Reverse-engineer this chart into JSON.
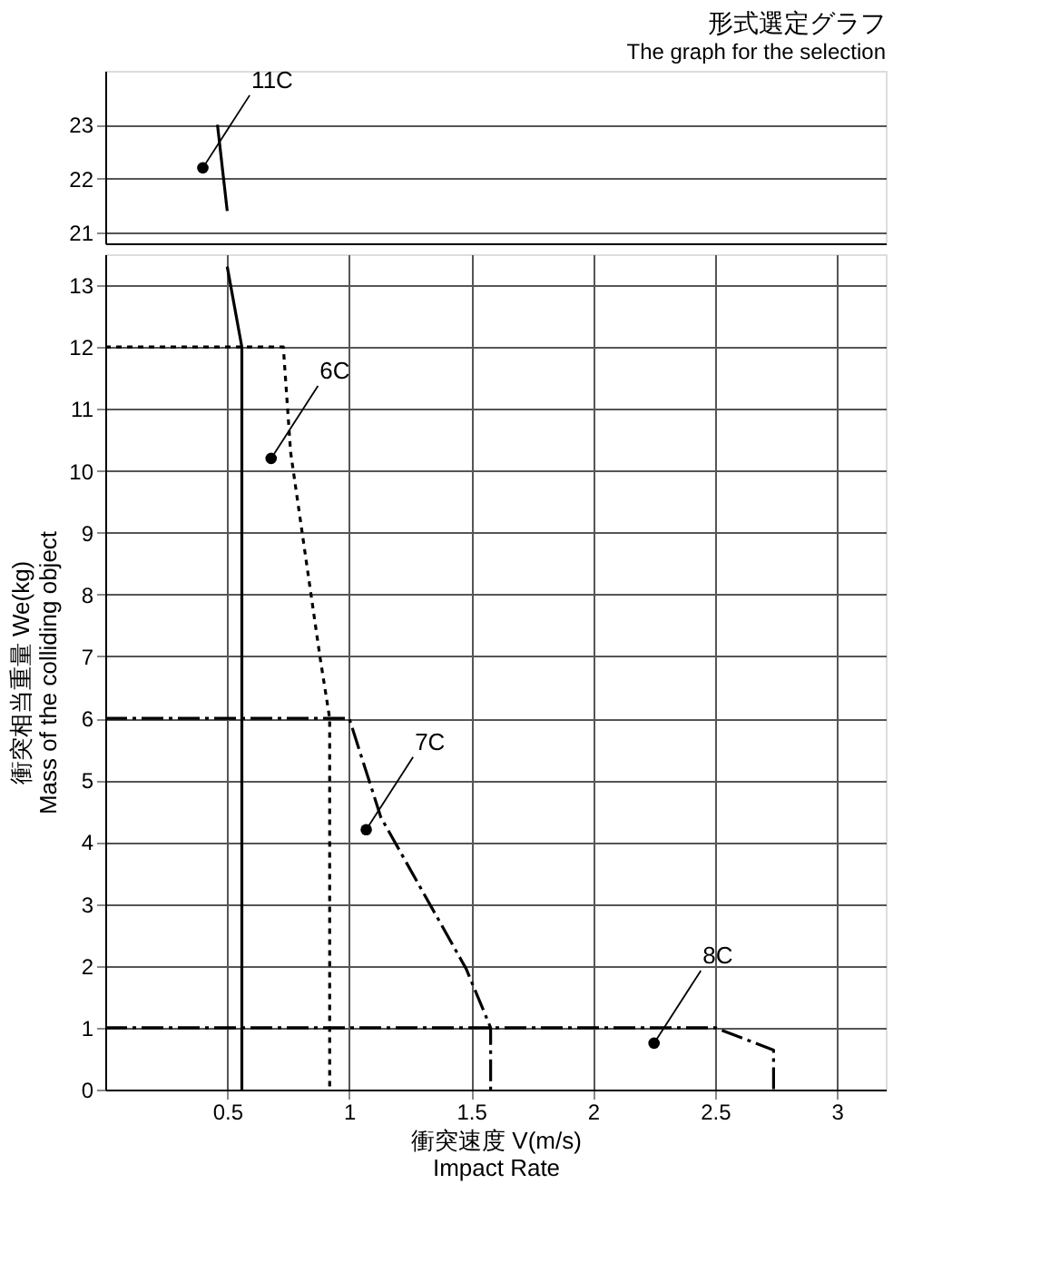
{
  "chart_data": [
    {
      "type": "line",
      "title": "形式選定グラフ",
      "subtitle": "The graph for the selection",
      "xlim": [
        0,
        3.2
      ],
      "ylim": [
        20.8,
        24
      ],
      "yticks": [
        21,
        22,
        23
      ],
      "tick_labels": "y",
      "grid": true,
      "marker": "none",
      "series": [
        {
          "color": "#000000",
          "line_style": "solid",
          "x": [
            0.46,
            0.5
          ],
          "values": [
            23,
            21.4
          ]
        }
      ],
      "annotations": [
        {
          "text": "11C",
          "x": 0.4,
          "y": 22.2
        }
      ]
    },
    {
      "type": "line",
      "xlabel": "衝突速度 V(m/s)\nImpact Rate",
      "ylabel": "衝突相当重量 We(kg)\nMass of the colliding object",
      "xlim": [
        0,
        3.2
      ],
      "xticks": [
        0.5,
        1,
        1.5,
        2,
        2.5,
        3
      ],
      "ylim": [
        0,
        13.5
      ],
      "yticks": [
        0,
        1,
        2,
        3,
        4,
        5,
        6,
        7,
        8,
        9,
        10,
        11,
        12,
        13
      ],
      "grid": true,
      "marker": "none",
      "series": [
        {
          "color": "#000000",
          "line_style": "solid",
          "x": [
            0.5,
            0.56,
            0.56
          ],
          "values": [
            13.3,
            12,
            0
          ]
        },
        {
          "color": "#000000",
          "line_style": "dotted",
          "x": [
            0,
            0.73,
            0.76,
            0.88,
            0.92,
            0.92
          ],
          "values": [
            12,
            12,
            10.3,
            7,
            6,
            0
          ]
        },
        {
          "color": "#000000",
          "line_style": "dashed",
          "x": [
            0,
            1,
            1.13,
            1.48,
            1.58,
            1.58
          ],
          "values": [
            6,
            6,
            4.4,
            1.95,
            1,
            0
          ]
        },
        {
          "color": "#000000",
          "line_style": "dashed",
          "x": [
            0,
            2.5,
            2.74,
            2.74
          ],
          "values": [
            1,
            1,
            0.64,
            0
          ]
        }
      ],
      "annotations": [
        {
          "text": "6C",
          "x": 0.68,
          "y": 10.2
        },
        {
          "text": "7C",
          "x": 1.07,
          "y": 4.2
        },
        {
          "text": "8C",
          "x": 2.25,
          "y": 0.75
        }
      ]
    }
  ]
}
